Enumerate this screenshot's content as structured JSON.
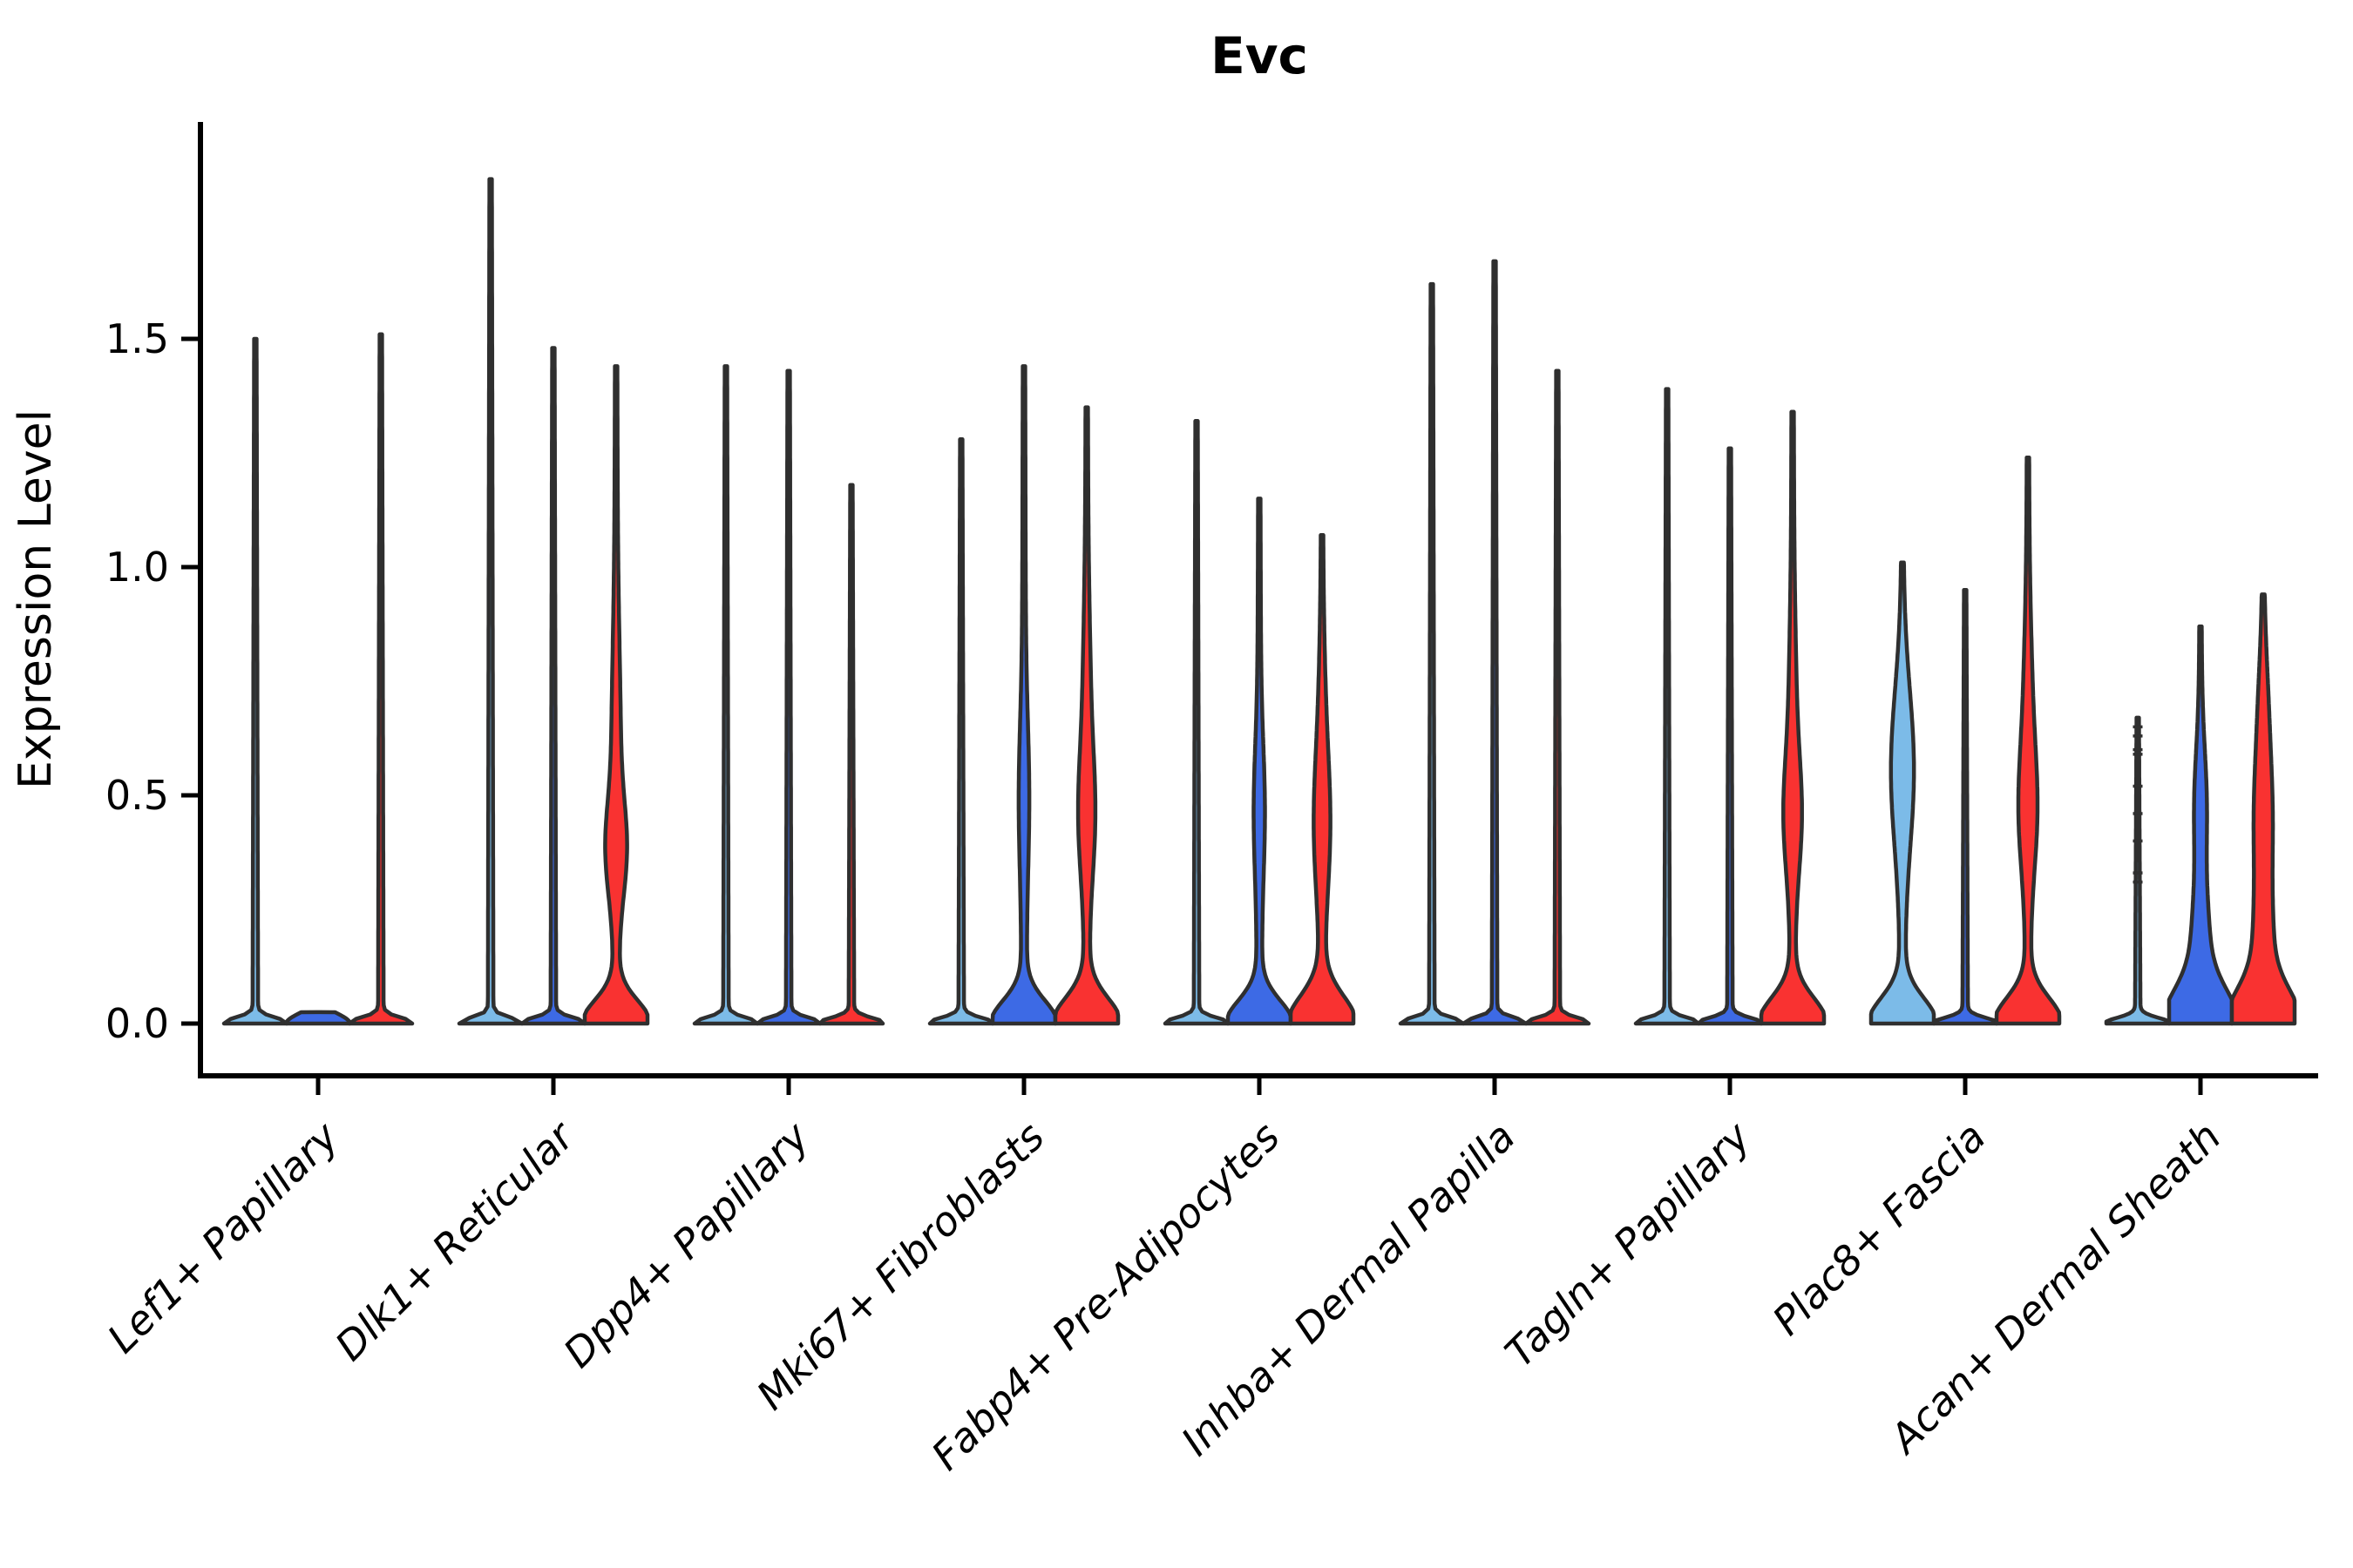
{
  "figure": {
    "title": "Evc",
    "y_axis": {
      "label": "Expression Level",
      "tick_labels": [
        "0.0",
        "0.5",
        "1.0",
        "1.5"
      ],
      "tick_values": [
        0.0,
        0.5,
        1.0,
        1.5
      ]
    }
  },
  "chart_data": {
    "type": "violin",
    "title": "Evc",
    "xlabel": "",
    "ylabel": "Expression Level",
    "ylim": [
      -0.06,
      1.97
    ],
    "y_ticks": [
      0.0,
      0.5,
      1.0,
      1.5
    ],
    "y_tick_labels": [
      "0.0",
      "0.5",
      "1.0",
      "1.5"
    ],
    "x_tick_rotation": -45,
    "grid": false,
    "legend": null,
    "categories": [
      "Lef1+ Papillary",
      "Dlk1+ Reticular",
      "Dpp4+ Papillary",
      "Mki67+ Fibroblasts",
      "Fabp4+ Pre-Adipocytes",
      "Inhba+ Dermal Papilla",
      "Tagln+ Papillary",
      "Plac8+ Fascia",
      "Acan+ Dermal Sheath"
    ],
    "colors": {
      "split1": "#7CBBE8",
      "split2": "#3D6AE5",
      "split3": "#F93231",
      "outline": "#2F2F2F",
      "axis": "#000000"
    },
    "violins_per_group": 3,
    "groups": [
      {
        "category": "Lef1+ Papillary",
        "violins": [
          {
            "split": 1,
            "color_key": "split1",
            "shape": "spike",
            "max": 1.5
          },
          {
            "split": 2,
            "color_key": "split2",
            "shape": "flat",
            "max": 0.0
          },
          {
            "split": 3,
            "color_key": "split3",
            "shape": "spike",
            "max": 1.51
          }
        ]
      },
      {
        "category": "Dlk1+ Reticular",
        "violins": [
          {
            "split": 1,
            "color_key": "split1",
            "shape": "spike",
            "max": 1.85
          },
          {
            "split": 2,
            "color_key": "split2",
            "shape": "spike",
            "max": 1.48
          },
          {
            "split": 3,
            "color_key": "split3",
            "shape": "bulged",
            "max": 1.44,
            "profile": [
              [
                36,
                0,
                0.05
              ],
              [
                8,
                0.38,
                0.1
              ],
              [
                3,
                0.6,
                0.22
              ]
            ]
          }
        ]
      },
      {
        "category": "Dpp4+ Papillary",
        "violins": [
          {
            "split": 1,
            "color_key": "split1",
            "shape": "spike",
            "max": 1.44
          },
          {
            "split": 2,
            "color_key": "split2",
            "shape": "spike",
            "max": 1.43
          },
          {
            "split": 3,
            "color_key": "split3",
            "shape": "spike",
            "max": 1.18
          }
        ]
      },
      {
        "category": "Mki67+ Fibroblasts",
        "violins": [
          {
            "split": 1,
            "color_key": "split1",
            "shape": "spike",
            "max": 1.28
          },
          {
            "split": 2,
            "color_key": "split2",
            "shape": "bulged",
            "max": 1.44,
            "profile": [
              [
                35,
                0,
                0.05
              ],
              [
                3.5,
                0.5,
                0.16
              ]
            ]
          },
          {
            "split": 3,
            "color_key": "split3",
            "shape": "bulged",
            "max": 1.35,
            "profile": [
              [
                36,
                0,
                0.055
              ],
              [
                6,
                0.45,
                0.13
              ],
              [
                2.5,
                0.68,
                0.2
              ]
            ]
          }
        ]
      },
      {
        "category": "Fabp4+ Pre-Adipocytes",
        "violins": [
          {
            "split": 1,
            "color_key": "split1",
            "shape": "spike",
            "max": 1.32
          },
          {
            "split": 2,
            "color_key": "split2",
            "shape": "bulged",
            "max": 1.15,
            "profile": [
              [
                35,
                0,
                0.05
              ],
              [
                4,
                0.47,
                0.14
              ]
            ]
          },
          {
            "split": 3,
            "color_key": "split3",
            "shape": "bulged",
            "max": 1.07,
            "profile": [
              [
                36,
                0,
                0.06
              ],
              [
                5.5,
                0.42,
                0.14
              ],
              [
                2.5,
                0.6,
                0.18
              ]
            ]
          }
        ]
      },
      {
        "category": "Inhba+ Dermal Papilla",
        "violins": [
          {
            "split": 1,
            "color_key": "split1",
            "shape": "spike",
            "max": 1.62
          },
          {
            "split": 2,
            "color_key": "split2",
            "shape": "spike",
            "max": 1.67
          },
          {
            "split": 3,
            "color_key": "split3",
            "shape": "spike",
            "max": 1.43
          }
        ]
      },
      {
        "category": "Tagln+ Papillary",
        "violins": [
          {
            "split": 1,
            "color_key": "split1",
            "shape": "spike",
            "max": 1.39
          },
          {
            "split": 2,
            "color_key": "split2",
            "shape": "spike",
            "max": 1.26
          },
          {
            "split": 3,
            "color_key": "split3",
            "shape": "bulged",
            "max": 1.34,
            "profile": [
              [
                36,
                0,
                0.055
              ],
              [
                6.5,
                0.45,
                0.12
              ],
              [
                2.5,
                0.64,
                0.2
              ]
            ]
          }
        ]
      },
      {
        "category": "Plac8+ Fascia",
        "violins": [
          {
            "split": 1,
            "color_key": "split1",
            "shape": "bulged",
            "max": 1.01,
            "profile": [
              [
                36,
                0,
                0.055
              ],
              [
                11,
                0.56,
                0.17
              ]
            ]
          },
          {
            "split": 2,
            "color_key": "split2",
            "shape": "spike",
            "max": 0.95
          },
          {
            "split": 3,
            "color_key": "split3",
            "shape": "bulged",
            "max": 1.24,
            "profile": [
              [
                36,
                0,
                0.055
              ],
              [
                7,
                0.46,
                0.13
              ],
              [
                3,
                0.68,
                0.18
              ]
            ]
          }
        ]
      },
      {
        "category": "Acan+ Dermal Sheath",
        "violins": [
          {
            "split": 1,
            "color_key": "split1",
            "shape": "spike",
            "max": 0.67,
            "points": [
              0.65,
              0.63,
              0.6,
              0.59,
              0.52,
              0.46,
              0.4,
              0.33,
              0.31
            ]
          },
          {
            "split": 2,
            "color_key": "split2",
            "shape": "bulged",
            "max": 0.87,
            "profile": [
              [
                36,
                0,
                0.07
              ],
              [
                8,
                0.15,
                0.12
              ],
              [
                5,
                0.48,
                0.12
              ]
            ]
          },
          {
            "split": 3,
            "color_key": "split3",
            "shape": "bulged",
            "max": 0.94,
            "profile": [
              [
                36,
                0,
                0.07
              ],
              [
                8,
                0.15,
                0.12
              ],
              [
                8,
                0.45,
                0.14
              ],
              [
                3,
                0.7,
                0.12
              ]
            ]
          }
        ]
      }
    ]
  }
}
